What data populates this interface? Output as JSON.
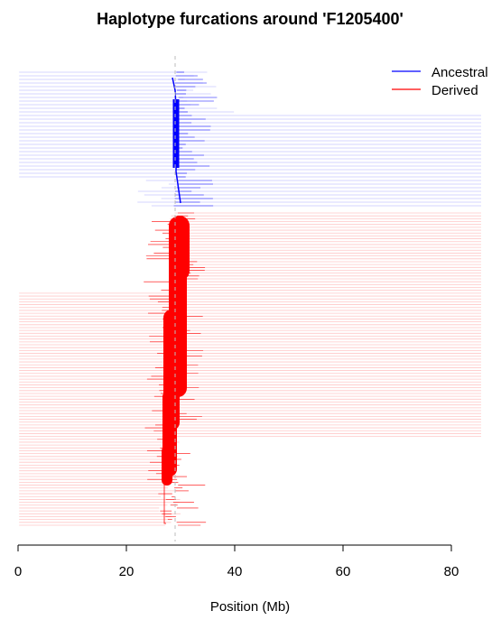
{
  "chart_data": {
    "type": "line",
    "title": "Haplotype furcations around 'F1205400'",
    "xlabel": "Position (Mb)",
    "ylabel": "",
    "xlim": [
      0,
      80
    ],
    "x_ticks": [
      "0",
      "20",
      "40",
      "60",
      "80"
    ],
    "focal_position_mb": 29,
    "grid": false,
    "legend_position": "top-right",
    "series": [
      {
        "name": "Ancestral",
        "color": "#0000ff",
        "light_color": "#c8c8ff",
        "haplotype_count": 38,
        "span_mb": [
          0.2,
          85.5
        ]
      },
      {
        "name": "Derived",
        "color": "#ff0000",
        "light_color": "#ffc8c8",
        "haplotype_count": 110,
        "span_mb": [
          0.2,
          85.5
        ]
      }
    ]
  }
}
